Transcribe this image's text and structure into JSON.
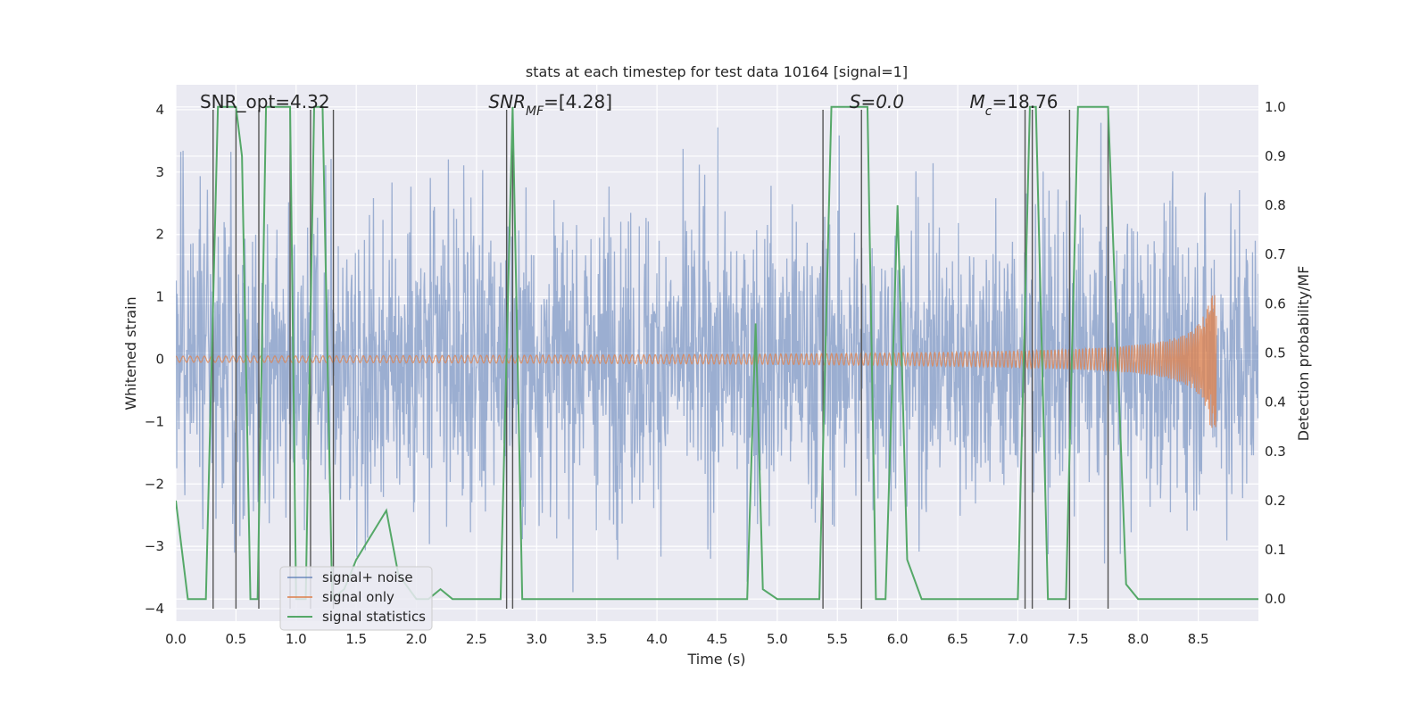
{
  "chart_data": {
    "type": "line",
    "title": "stats at each timestep for test data 10164 [signal=1]",
    "xlabel": "Time (s)",
    "ylabel": "Whitened strain",
    "ylabel_right": "Detection probability/MF",
    "xlim": [
      0.0,
      9.0
    ],
    "ylim": [
      -4.2,
      4.4
    ],
    "ylim_right": [
      -0.045,
      1.045
    ],
    "x_ticks": [
      0.0,
      0.5,
      1.0,
      1.5,
      2.0,
      2.5,
      3.0,
      3.5,
      4.0,
      4.5,
      5.0,
      5.5,
      6.0,
      6.5,
      7.0,
      7.5,
      8.0,
      8.5
    ],
    "x_tick_labels": [
      "0.0",
      "0.5",
      "1.0",
      "1.5",
      "2.0",
      "2.5",
      "3.0",
      "3.5",
      "4.0",
      "4.5",
      "5.0",
      "5.5",
      "6.0",
      "6.5",
      "7.0",
      "7.5",
      "8.0",
      "8.5"
    ],
    "y_ticks": [
      -4,
      -3,
      -2,
      -1,
      0,
      1,
      2,
      3,
      4
    ],
    "y_tick_labels": [
      "−4",
      "−3",
      "−2",
      "−1",
      "0",
      "1",
      "2",
      "3",
      "4"
    ],
    "y_ticks_right": [
      0.0,
      0.1,
      0.2,
      0.3,
      0.4,
      0.5,
      0.6,
      0.7,
      0.8,
      0.9,
      1.0
    ],
    "y_tick_labels_right": [
      "0.0",
      "0.1",
      "0.2",
      "0.3",
      "0.4",
      "0.5",
      "0.6",
      "0.7",
      "0.8",
      "0.9",
      "1.0"
    ],
    "grid": true,
    "legend_position": "lower-left",
    "annotations": [
      {
        "text": "SNR_opt=4.32",
        "italic": false,
        "x": 0.2
      },
      {
        "text": "SNR_MF=[4.28]",
        "italic": true,
        "x": 2.6
      },
      {
        "text": "S=0.0",
        "italic": true,
        "x": 5.6
      },
      {
        "text": "M_c=18.76",
        "italic": true,
        "x": 6.6
      }
    ],
    "series": [
      {
        "name": "signal+ noise",
        "axis": "left",
        "color": "#4c72b0",
        "opacity": 0.5,
        "description": "dense whitened strain noise, samples spanning about -3.9 to 4.0 over 0 to 9 s",
        "x_range": [
          0.0,
          9.0
        ],
        "typical_amplitude": 1.65
      },
      {
        "name": "signal only",
        "axis": "left",
        "color": "#dd8452",
        "x_range": [
          0.0,
          8.65
        ],
        "peak_amplitude": 1.1,
        "merger_time": 8.65
      },
      {
        "name": "signal statistics",
        "axis": "right",
        "color": "#55a868",
        "x": [
          0.0,
          0.05,
          0.1,
          0.25,
          0.35,
          0.5,
          0.55,
          0.62,
          0.68,
          0.75,
          0.95,
          1.0,
          1.08,
          1.15,
          1.22,
          1.3,
          1.4,
          1.5,
          1.75,
          1.85,
          2.0,
          2.1,
          2.2,
          2.3,
          2.5,
          2.7,
          2.8,
          2.88,
          2.95,
          3.5,
          4.0,
          4.5,
          4.75,
          4.82,
          4.88,
          5.0,
          5.2,
          5.35,
          5.45,
          5.55,
          5.65,
          5.75,
          5.82,
          5.9,
          6.0,
          6.08,
          6.2,
          6.5,
          7.0,
          7.1,
          7.15,
          7.25,
          7.4,
          7.5,
          7.75,
          7.9,
          8.0,
          8.5,
          9.0
        ],
        "y": [
          0.2,
          0.1,
          0.0,
          0.0,
          1.0,
          1.0,
          0.9,
          0.0,
          0.0,
          1.0,
          1.0,
          0.0,
          0.0,
          1.0,
          1.0,
          0.0,
          0.02,
          0.08,
          0.18,
          0.05,
          0.0,
          0.0,
          0.02,
          0.0,
          0.0,
          0.0,
          1.0,
          0.0,
          0.0,
          0.0,
          0.0,
          0.0,
          0.0,
          0.56,
          0.02,
          0.0,
          0.0,
          0.0,
          1.0,
          1.0,
          1.0,
          1.0,
          0.0,
          0.0,
          0.8,
          0.08,
          0.0,
          0.0,
          0.0,
          1.0,
          1.0,
          0.0,
          0.0,
          1.0,
          1.0,
          0.03,
          0.0,
          0.0,
          0.0
        ]
      }
    ],
    "vertical_lines": [
      0.31,
      0.5,
      0.69,
      0.95,
      1.12,
      1.31,
      2.75,
      2.8,
      5.38,
      5.7,
      7.06,
      7.12,
      7.43,
      7.75
    ],
    "vertical_line_range_left": [
      -4.0,
      4.0
    ],
    "vertical_line_color": "#555555"
  }
}
